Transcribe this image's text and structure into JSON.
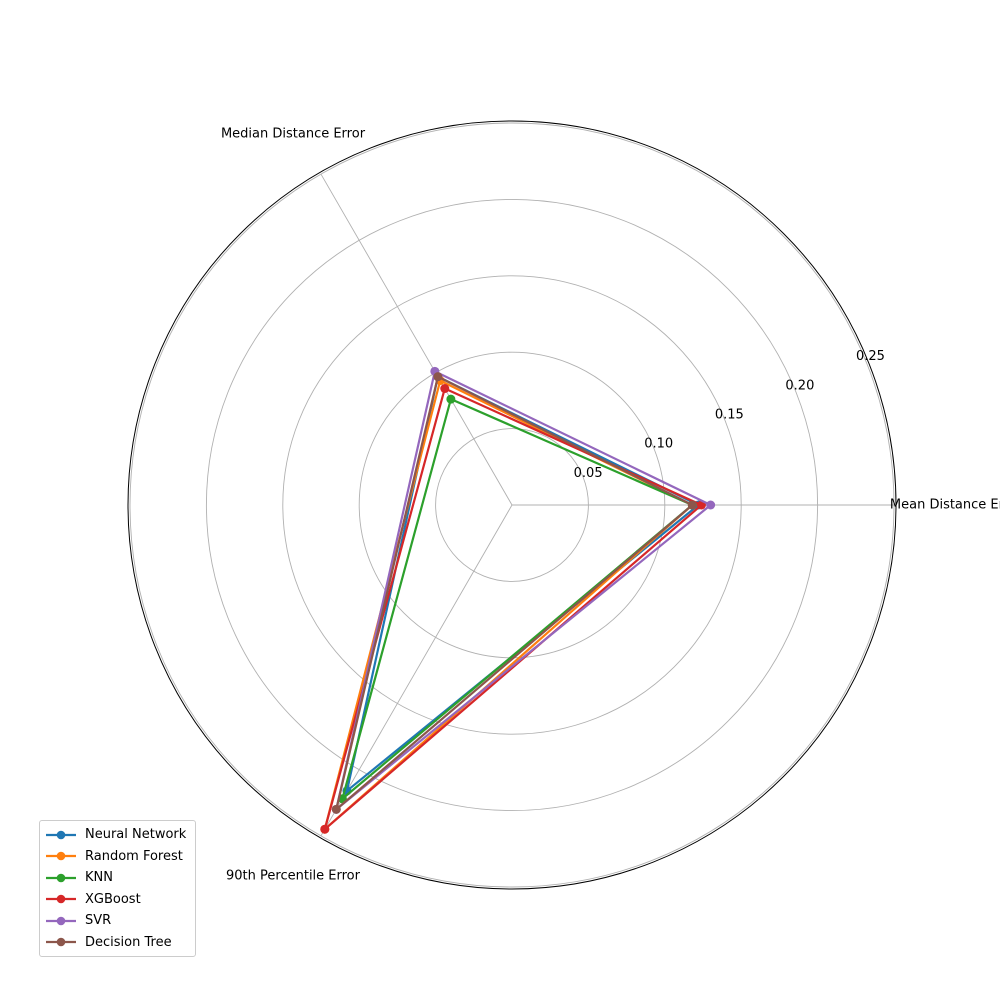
{
  "chart_data": {
    "type": "radar",
    "axes": [
      "Mean Distance Error",
      "Median Distance Error",
      "90th Percentile Error"
    ],
    "rlim": [
      0,
      0.25
    ],
    "rticks": [
      0.05,
      0.1,
      0.15,
      0.2,
      0.25
    ],
    "rtick_labels": [
      "0.05",
      "0.10",
      "0.15",
      "0.20",
      "0.25"
    ],
    "grid": true,
    "legend_position": "bottom-left",
    "series": [
      {
        "name": "Neural Network",
        "color": "#1f77b4",
        "values": [
          0.122,
          0.097,
          0.216
        ]
      },
      {
        "name": "Random Forest",
        "color": "#ff7f0e",
        "values": [
          0.118,
          0.094,
          0.245
        ]
      },
      {
        "name": "KNN",
        "color": "#2ca02c",
        "values": [
          0.118,
          0.08,
          0.222
        ]
      },
      {
        "name": "XGBoost",
        "color": "#d62728",
        "values": [
          0.124,
          0.088,
          0.245
        ]
      },
      {
        "name": "SVR",
        "color": "#9467bd",
        "values": [
          0.13,
          0.101,
          0.23
        ]
      },
      {
        "name": "Decision Tree",
        "color": "#8c564b",
        "values": [
          0.118,
          0.097,
          0.23
        ]
      }
    ]
  }
}
